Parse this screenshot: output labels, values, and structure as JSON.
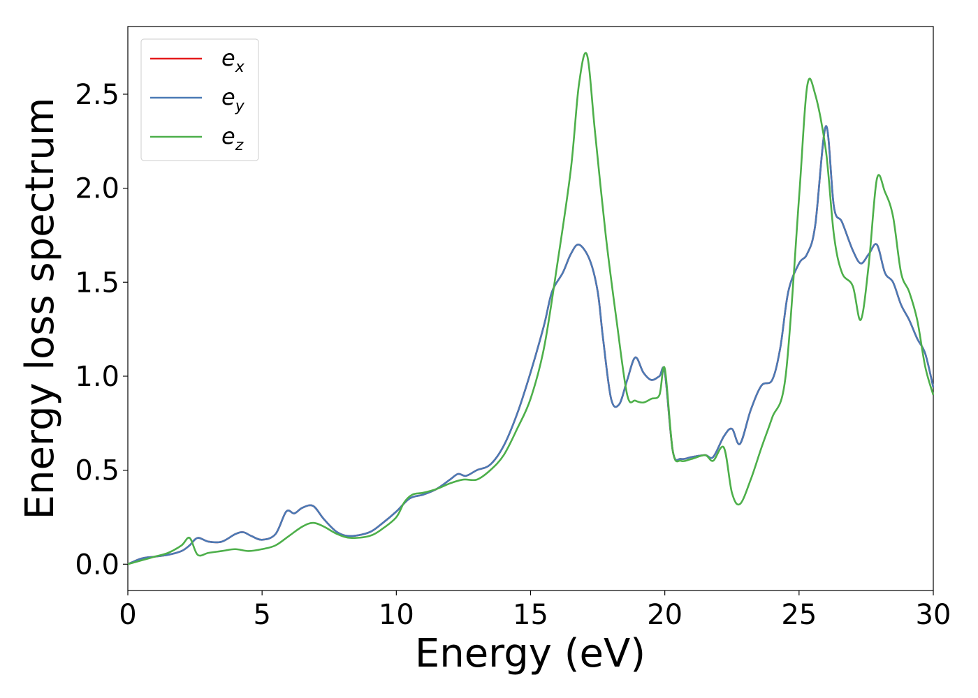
{
  "chart_data": {
    "type": "line",
    "xlabel": "Energy (eV)",
    "ylabel": "Energy loss spectrum",
    "xlim": [
      0,
      30
    ],
    "ylim": [
      -0.14,
      2.86
    ],
    "xticks": [
      0,
      5,
      10,
      15,
      20,
      25,
      30
    ],
    "yticks": [
      0.0,
      0.5,
      1.0,
      1.5,
      2.0,
      2.5
    ],
    "xtick_labels": [
      "0",
      "5",
      "10",
      "15",
      "20",
      "25",
      "30"
    ],
    "ytick_labels": [
      "0.0",
      "0.5",
      "1.0",
      "1.5",
      "2.0",
      "2.5"
    ],
    "grid": false,
    "legend_position": "upper-left",
    "series": [
      {
        "name": "e_x",
        "legend_base": "e",
        "legend_sub": "x",
        "color": "#e41a1c",
        "x": [
          0,
          0.5,
          1,
          1.5,
          2,
          2.3,
          2.6,
          3,
          3.5,
          4,
          4.3,
          4.6,
          5,
          5.5,
          5.9,
          6.2,
          6.5,
          6.9,
          7.3,
          7.8,
          8.3,
          9,
          9.5,
          10,
          10.5,
          11,
          11.5,
          12,
          12.3,
          12.6,
          13,
          13.5,
          14,
          14.5,
          15,
          15.5,
          15.8,
          16.2,
          16.5,
          16.8,
          17.2,
          17.5,
          17.7,
          18,
          18.3,
          18.6,
          18.9,
          19.2,
          19.5,
          19.8,
          20,
          20.3,
          20.6,
          21,
          21.5,
          21.8,
          22.2,
          22.5,
          22.8,
          23.2,
          23.6,
          24,
          24.3,
          24.6,
          25,
          25.3,
          25.6,
          26,
          26.3,
          26.6,
          27,
          27.3,
          27.6,
          27.9,
          28.2,
          28.5,
          28.8,
          29.1,
          29.4,
          29.7,
          30
        ],
        "values": [
          0,
          0.03,
          0.04,
          0.05,
          0.07,
          0.1,
          0.14,
          0.12,
          0.12,
          0.16,
          0.17,
          0.15,
          0.13,
          0.16,
          0.28,
          0.27,
          0.3,
          0.31,
          0.24,
          0.17,
          0.15,
          0.17,
          0.22,
          0.28,
          0.35,
          0.37,
          0.4,
          0.45,
          0.48,
          0.47,
          0.5,
          0.53,
          0.63,
          0.8,
          1.02,
          1.27,
          1.45,
          1.55,
          1.65,
          1.7,
          1.62,
          1.45,
          1.2,
          0.88,
          0.85,
          0.98,
          1.1,
          1.02,
          0.98,
          1.0,
          1.02,
          0.6,
          0.56,
          0.57,
          0.58,
          0.57,
          0.68,
          0.72,
          0.64,
          0.82,
          0.95,
          0.98,
          1.15,
          1.45,
          1.6,
          1.65,
          1.8,
          2.33,
          1.9,
          1.82,
          1.67,
          1.6,
          1.65,
          1.7,
          1.55,
          1.5,
          1.38,
          1.3,
          1.2,
          1.12,
          0.94
        ]
      },
      {
        "name": "e_y",
        "legend_base": "e",
        "legend_sub": "y",
        "color": "#4a7ab5",
        "x": [
          0,
          0.5,
          1,
          1.5,
          2,
          2.3,
          2.6,
          3,
          3.5,
          4,
          4.3,
          4.6,
          5,
          5.5,
          5.9,
          6.2,
          6.5,
          6.9,
          7.3,
          7.8,
          8.3,
          9,
          9.5,
          10,
          10.5,
          11,
          11.5,
          12,
          12.3,
          12.6,
          13,
          13.5,
          14,
          14.5,
          15,
          15.5,
          15.8,
          16.2,
          16.5,
          16.8,
          17.2,
          17.5,
          17.7,
          18,
          18.3,
          18.6,
          18.9,
          19.2,
          19.5,
          19.8,
          20,
          20.3,
          20.6,
          21,
          21.5,
          21.8,
          22.2,
          22.5,
          22.8,
          23.2,
          23.6,
          24,
          24.3,
          24.6,
          25,
          25.3,
          25.6,
          26,
          26.3,
          26.6,
          27,
          27.3,
          27.6,
          27.9,
          28.2,
          28.5,
          28.8,
          29.1,
          29.4,
          29.7,
          30
        ],
        "values": [
          0,
          0.03,
          0.04,
          0.05,
          0.07,
          0.1,
          0.14,
          0.12,
          0.12,
          0.16,
          0.17,
          0.15,
          0.13,
          0.16,
          0.28,
          0.27,
          0.3,
          0.31,
          0.24,
          0.17,
          0.15,
          0.17,
          0.22,
          0.28,
          0.35,
          0.37,
          0.4,
          0.45,
          0.48,
          0.47,
          0.5,
          0.53,
          0.63,
          0.8,
          1.02,
          1.27,
          1.45,
          1.55,
          1.65,
          1.7,
          1.62,
          1.45,
          1.2,
          0.88,
          0.85,
          0.98,
          1.1,
          1.02,
          0.98,
          1.0,
          1.02,
          0.6,
          0.56,
          0.57,
          0.58,
          0.57,
          0.68,
          0.72,
          0.64,
          0.82,
          0.95,
          0.98,
          1.15,
          1.45,
          1.6,
          1.65,
          1.8,
          2.33,
          1.9,
          1.82,
          1.67,
          1.6,
          1.65,
          1.7,
          1.55,
          1.5,
          1.38,
          1.3,
          1.2,
          1.12,
          0.94
        ]
      },
      {
        "name": "e_z",
        "legend_base": "e",
        "legend_sub": "z",
        "color": "#4daf4a",
        "x": [
          0,
          0.5,
          1,
          1.5,
          2,
          2.3,
          2.6,
          3,
          3.5,
          4,
          4.5,
          5,
          5.5,
          6,
          6.5,
          6.9,
          7.3,
          7.8,
          8.3,
          9,
          9.5,
          10,
          10.3,
          10.6,
          11,
          11.5,
          12,
          12.5,
          13,
          13.5,
          14,
          14.5,
          15,
          15.5,
          16,
          16.5,
          16.8,
          17.1,
          17.4,
          17.8,
          18.2,
          18.6,
          18.9,
          19.2,
          19.5,
          19.8,
          20,
          20.3,
          20.6,
          21,
          21.5,
          21.8,
          22.2,
          22.5,
          22.8,
          23.2,
          23.6,
          24,
          24.5,
          25,
          25.3,
          25.6,
          26,
          26.3,
          26.6,
          27,
          27.3,
          27.6,
          27.9,
          28.2,
          28.5,
          28.8,
          29.1,
          29.4,
          29.7,
          30
        ],
        "values": [
          0,
          0.02,
          0.04,
          0.06,
          0.1,
          0.14,
          0.05,
          0.06,
          0.07,
          0.08,
          0.07,
          0.08,
          0.1,
          0.15,
          0.2,
          0.22,
          0.2,
          0.16,
          0.14,
          0.15,
          0.19,
          0.25,
          0.33,
          0.37,
          0.38,
          0.4,
          0.43,
          0.45,
          0.45,
          0.5,
          0.58,
          0.72,
          0.88,
          1.15,
          1.6,
          2.1,
          2.55,
          2.71,
          2.3,
          1.75,
          1.3,
          0.9,
          0.87,
          0.86,
          0.88,
          0.9,
          1.04,
          0.6,
          0.55,
          0.56,
          0.58,
          0.55,
          0.62,
          0.38,
          0.32,
          0.45,
          0.62,
          0.78,
          1.0,
          1.95,
          2.54,
          2.5,
          2.2,
          1.75,
          1.55,
          1.48,
          1.3,
          1.6,
          2.05,
          1.98,
          1.85,
          1.55,
          1.45,
          1.3,
          1.05,
          0.9
        ]
      }
    ]
  }
}
